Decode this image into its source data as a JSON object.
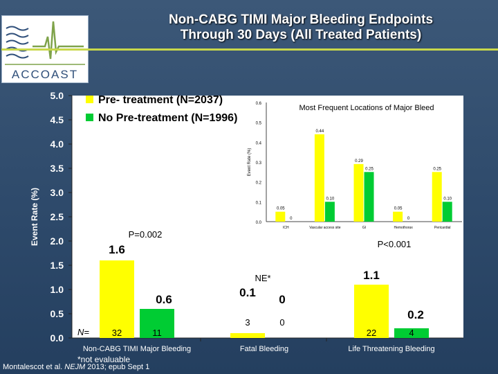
{
  "title_line1": "Non-CABG TIMI Major Bleeding Endpoints",
  "title_line2": "Through 30 Days (All Treated Patients)",
  "logo_text": "ACCOAST",
  "footnote": "*not evaluable",
  "citation_prefix": "Montalescot et al. ",
  "citation_journal": "NEJM",
  "citation_suffix": " 2013; epub Sept 1",
  "colors": {
    "pre": "#ffff00",
    "nopre": "#00cc33",
    "background": "#2e4a6b"
  },
  "chart_data": [
    {
      "type": "bar",
      "ylabel": "Event Rate (%)",
      "ylim": [
        0,
        5
      ],
      "yticks": [
        "0.0",
        "0.5",
        "1.0",
        "1.5",
        "2.0",
        "2.5",
        "3.0",
        "3.5",
        "4.0",
        "4.5",
        "5.0"
      ],
      "categories": [
        "Non-CABG TIMI Major Bleeding",
        "Fatal Bleeding",
        "Life Threatening Bleeding"
      ],
      "series": [
        {
          "name": "Pre- treatment (N=2037)",
          "values": [
            1.6,
            0.1,
            1.1
          ],
          "labels": [
            "1.6",
            "0.1",
            "1.1"
          ],
          "n": [
            "32",
            "3",
            "22"
          ]
        },
        {
          "name": "No Pre-treatment (N=1996)",
          "values": [
            0.6,
            0,
            0.2
          ],
          "labels": [
            "0.6",
            "0",
            "0.2"
          ],
          "n": [
            "11",
            "0",
            "4"
          ]
        }
      ],
      "n_label": "N=",
      "annotations": [
        "P=0.002",
        "NE*",
        "P<0.001"
      ],
      "legend": "top-left"
    },
    {
      "type": "bar",
      "title": "Most Frequent Locations of Major Bleed",
      "ylabel": "Event Rate (%)",
      "ylim": [
        0,
        0.6
      ],
      "yticks": [
        "0.0",
        "0.1",
        "0.2",
        "0.3",
        "0.4",
        "0.5",
        "0.6"
      ],
      "categories": [
        "ICH",
        "Vascular access site",
        "GI",
        "Hemothorax",
        "Pericardial"
      ],
      "series": [
        {
          "name": "Pre- treatment (N=2037)",
          "values": [
            0.05,
            0.44,
            0.29,
            0.05,
            0.25
          ],
          "labels": [
            "0.05",
            "0.44",
            "0.29",
            "0.05",
            "0.25"
          ]
        },
        {
          "name": "No Pre-treatment (N=1996)",
          "values": [
            0,
            0.1,
            0.25,
            0,
            0.1
          ],
          "labels": [
            "0",
            "0.10",
            "0.25",
            "0",
            "0.10"
          ]
        }
      ]
    }
  ]
}
